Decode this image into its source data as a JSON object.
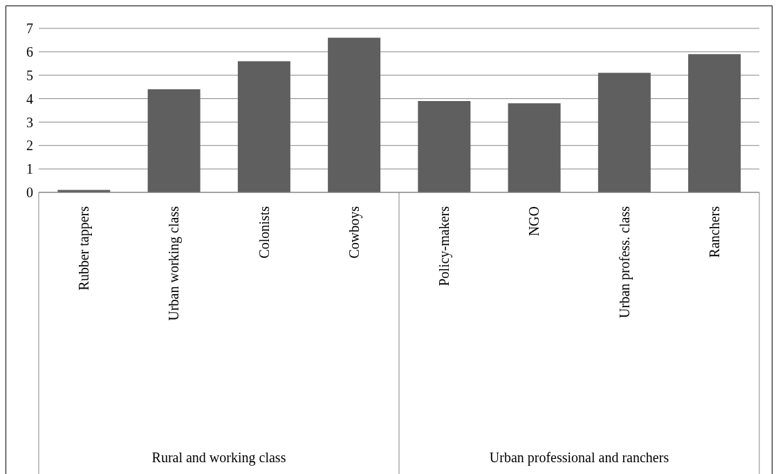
{
  "chart_data": {
    "type": "bar",
    "categories": [
      "Rubber tappers",
      "Urban working class",
      "Colonists",
      "Cowboys",
      "Policy-makers",
      "NGO",
      "Urban profess. class",
      "Ranchers"
    ],
    "values": [
      0.1,
      4.4,
      5.6,
      6.6,
      3.9,
      3.8,
      5.1,
      5.9
    ],
    "color": "#5f5f5f",
    "ylim": [
      0,
      7
    ],
    "yticks": [
      0,
      1,
      2,
      3,
      4,
      5,
      6,
      7
    ],
    "grid": "y",
    "annotations": [
      "Rural and working class",
      "Urban professional and ranchers"
    ]
  }
}
